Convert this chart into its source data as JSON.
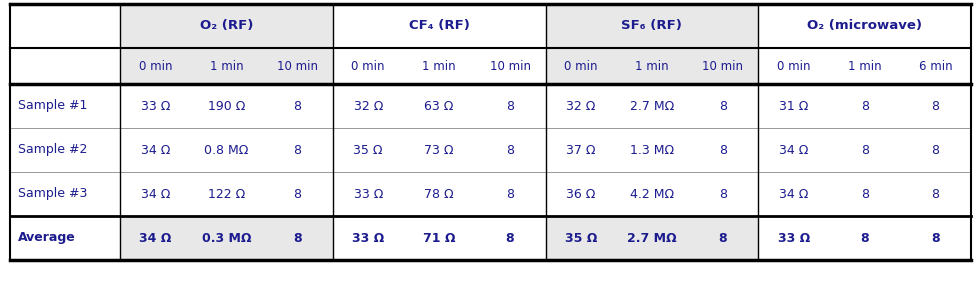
{
  "col_groups": [
    {
      "label": "O₂ (RF)",
      "cols": 3,
      "shaded": true
    },
    {
      "label": "CF₄ (RF)",
      "cols": 3,
      "shaded": false
    },
    {
      "label": "SF₆ (RF)",
      "cols": 3,
      "shaded": true
    },
    {
      "label": "O₂ (microwave)",
      "cols": 3,
      "shaded": false
    }
  ],
  "subheaders": [
    "0 min",
    "1 min",
    "10 min",
    "0 min",
    "1 min",
    "10 min",
    "0 min",
    "1 min",
    "10 min",
    "0 min",
    "1 min",
    "6 min"
  ],
  "row_labels": [
    "Sample #1",
    "Sample #2",
    "Sample #3",
    "Average"
  ],
  "row_bold": [
    false,
    false,
    false,
    true
  ],
  "data": [
    [
      "33 Ω",
      "190 Ω",
      "8",
      "32 Ω",
      "63 Ω",
      "8",
      "32 Ω",
      "2.7 MΩ",
      "8",
      "31 Ω",
      "8",
      "8"
    ],
    [
      "34 Ω",
      "0.8 MΩ",
      "8",
      "35 Ω",
      "73 Ω",
      "8",
      "37 Ω",
      "1.3 MΩ",
      "8",
      "34 Ω",
      "8",
      "8"
    ],
    [
      "34 Ω",
      "122 Ω",
      "8",
      "33 Ω",
      "78 Ω",
      "8",
      "36 Ω",
      "4.2 MΩ",
      "8",
      "34 Ω",
      "8",
      "8"
    ],
    [
      "34 Ω",
      "0.3 MΩ",
      "8",
      "33 Ω",
      "71 Ω",
      "8",
      "35 Ω",
      "2.7 MΩ",
      "8",
      "33 Ω",
      "8",
      "8"
    ]
  ],
  "shaded_col_bg": "#e8e8e8",
  "white_bg": "#ffffff",
  "border_color": "#000000",
  "header_text_color": "#1c1c8f",
  "data_text_color": "#1c1c8f",
  "fig_bg": "#ffffff",
  "fig_w": 9.77,
  "fig_h": 2.94,
  "dpi": 100
}
